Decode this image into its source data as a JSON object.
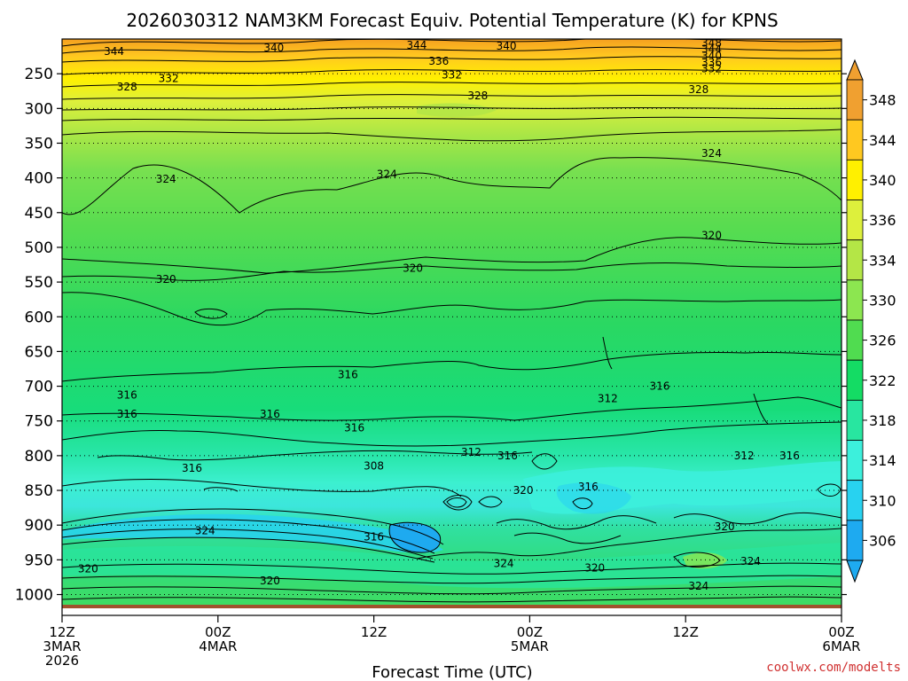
{
  "chart_data": {
    "type": "heatmap",
    "title": "2026030312 NAM3KM Forecast Equiv. Potential Temperature (K) for KPNS",
    "xlabel": "Forecast Time (UTC)",
    "ylabel": "",
    "credit": "coolwx.com/modelts",
    "x_ticks": [
      {
        "hours": 0,
        "line1": "12Z",
        "line2": "3MAR",
        "line3": "2026"
      },
      {
        "hours": 12,
        "line1": "00Z",
        "line2": "4MAR",
        "line3": ""
      },
      {
        "hours": 24,
        "line1": "12Z",
        "line2": "",
        "line3": ""
      },
      {
        "hours": 36,
        "line1": "00Z",
        "line2": "5MAR",
        "line3": ""
      },
      {
        "hours": 48,
        "line1": "12Z",
        "line2": "",
        "line3": ""
      },
      {
        "hours": 60,
        "line1": "00Z",
        "line2": "6MAR",
        "line3": ""
      }
    ],
    "xlim": [
      0,
      60
    ],
    "y_ticks": [
      250,
      300,
      350,
      400,
      450,
      500,
      550,
      600,
      650,
      700,
      750,
      800,
      850,
      900,
      950,
      1000
    ],
    "ylim": [
      200,
      1030
    ],
    "colorbar": {
      "labels": [
        "348",
        "344",
        "340",
        "336",
        "334",
        "330",
        "326",
        "322",
        "318",
        "314",
        "310",
        "306"
      ],
      "colors": [
        "#f0a030",
        "#ffc820",
        "#fff000",
        "#ddf03c",
        "#b4e646",
        "#8ce650",
        "#50dc50",
        "#14dc64",
        "#28e6a0",
        "#3cf0dc",
        "#28d2f0",
        "#1eaaf0"
      ]
    },
    "contour_labels": [
      {
        "text": "344",
        "hours": 4.0,
        "p": 218
      },
      {
        "text": "340",
        "hours": 16.3,
        "p": 213
      },
      {
        "text": "344",
        "hours": 27.3,
        "p": 209
      },
      {
        "text": "340",
        "hours": 34.2,
        "p": 210
      },
      {
        "text": "348",
        "hours": 50.0,
        "p": 206
      },
      {
        "text": "344",
        "hours": 50.0,
        "p": 215
      },
      {
        "text": "340",
        "hours": 50.0,
        "p": 224
      },
      {
        "text": "336",
        "hours": 50.0,
        "p": 234
      },
      {
        "text": "336",
        "hours": 29.0,
        "p": 232
      },
      {
        "text": "332",
        "hours": 8.2,
        "p": 257
      },
      {
        "text": "332",
        "hours": 30.0,
        "p": 252
      },
      {
        "text": "332",
        "hours": 50.0,
        "p": 243
      },
      {
        "text": "328",
        "hours": 5.0,
        "p": 269
      },
      {
        "text": "328",
        "hours": 32.0,
        "p": 282
      },
      {
        "text": "328",
        "hours": 49.0,
        "p": 273
      },
      {
        "text": "324",
        "hours": 8.0,
        "p": 402
      },
      {
        "text": "324",
        "hours": 25.0,
        "p": 395
      },
      {
        "text": "324",
        "hours": 50.0,
        "p": 365
      },
      {
        "text": "320",
        "hours": 8.0,
        "p": 546
      },
      {
        "text": "320",
        "hours": 27.0,
        "p": 530
      },
      {
        "text": "320",
        "hours": 50.0,
        "p": 483
      },
      {
        "text": "316",
        "hours": 22.0,
        "p": 683
      },
      {
        "text": "316",
        "hours": 5.0,
        "p": 713
      },
      {
        "text": "316",
        "hours": 5.0,
        "p": 740
      },
      {
        "text": "316",
        "hours": 16.0,
        "p": 740
      },
      {
        "text": "316",
        "hours": 22.5,
        "p": 760
      },
      {
        "text": "316",
        "hours": 10.0,
        "p": 818
      },
      {
        "text": "308",
        "hours": 24.0,
        "p": 815
      },
      {
        "text": "312",
        "hours": 31.5,
        "p": 795
      },
      {
        "text": "316",
        "hours": 34.3,
        "p": 800
      },
      {
        "text": "312",
        "hours": 42.0,
        "p": 718
      },
      {
        "text": "316",
        "hours": 46.0,
        "p": 700
      },
      {
        "text": "320",
        "hours": 35.5,
        "p": 850
      },
      {
        "text": "316",
        "hours": 40.5,
        "p": 845
      },
      {
        "text": "312",
        "hours": 52.5,
        "p": 800
      },
      {
        "text": "316",
        "hours": 56.0,
        "p": 800
      },
      {
        "text": "316",
        "hours": 24.0,
        "p": 917
      },
      {
        "text": "324",
        "hours": 11.0,
        "p": 908
      },
      {
        "text": "320",
        "hours": 2.0,
        "p": 963
      },
      {
        "text": "320",
        "hours": 16.0,
        "p": 980
      },
      {
        "text": "324",
        "hours": 34.0,
        "p": 955
      },
      {
        "text": "320",
        "hours": 41.0,
        "p": 962
      },
      {
        "text": "320",
        "hours": 51.0,
        "p": 902
      },
      {
        "text": "324",
        "hours": 53.0,
        "p": 952
      },
      {
        "text": "324",
        "hours": 49.0,
        "p": 988
      }
    ]
  }
}
